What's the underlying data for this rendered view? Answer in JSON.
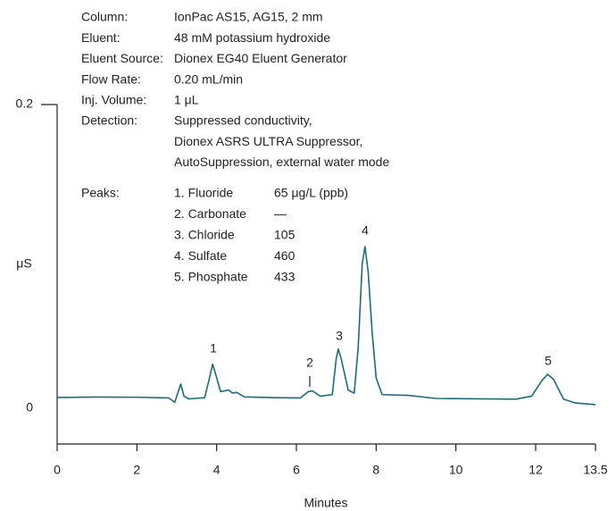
{
  "chart_data": {
    "type": "line",
    "x_label": "Minutes",
    "y_label": "μS",
    "xlim": [
      0,
      13.5
    ],
    "xticks": [
      0,
      2,
      4,
      6,
      8,
      10,
      12,
      13.5
    ],
    "ylim": [
      -0.0235,
      0.2
    ],
    "yticks": [
      0,
      0.2
    ],
    "y_tick_marks": [
      0.2
    ],
    "conditions": [
      {
        "label": "Column:",
        "value": [
          "IonPac AS15, AG15, 2 mm"
        ]
      },
      {
        "label": "Eluent:",
        "value": [
          "48 mM potassium hydroxide"
        ]
      },
      {
        "label": "Eluent Source:",
        "value": [
          "Dionex EG40 Eluent Generator"
        ]
      },
      {
        "label": "Flow Rate:",
        "value": [
          "0.20 mL/min"
        ]
      },
      {
        "label": "Inj. Volume:",
        "value": [
          "1 μL"
        ]
      },
      {
        "label": "Detection:",
        "value": [
          "Suppressed conductivity,",
          "Dionex ASRS ULTRA Suppressor,",
          "AutoSuppression, external water mode"
        ]
      }
    ],
    "peaks": {
      "label": "Peaks:",
      "items": [
        {
          "name": "1. Fluoride",
          "amount": "65 μg/L (ppb)"
        },
        {
          "name": "2. Carbonate",
          "amount": "—"
        },
        {
          "name": "3. Chloride",
          "amount": "105"
        },
        {
          "name": "4. Sulfate",
          "amount": "460"
        },
        {
          "name": "5. Phosphate",
          "amount": "433"
        }
      ]
    },
    "peak_labels": [
      "1",
      "2",
      "3",
      "4",
      "5"
    ],
    "series": [
      {
        "name": "Chromatogram",
        "color": "#1e6b78",
        "x": [
          0,
          1,
          2,
          2.8,
          2.95,
          3.05,
          3.1,
          3.18,
          3.3,
          3.7,
          3.82,
          3.9,
          3.98,
          4.1,
          4.3,
          4.4,
          4.5,
          4.7,
          5.5,
          6.1,
          6.3,
          6.4,
          6.6,
          6.9,
          7.0,
          7.05,
          7.12,
          7.3,
          7.45,
          7.55,
          7.65,
          7.72,
          7.8,
          7.9,
          8.0,
          8.15,
          8.8,
          9.5,
          11.5,
          11.9,
          12.15,
          12.3,
          12.45,
          12.7,
          13.0,
          13.5
        ],
        "values": [
          0.0071,
          0.0074,
          0.0073,
          0.0068,
          0.004,
          0.012,
          0.016,
          0.008,
          0.0062,
          0.007,
          0.02,
          0.029,
          0.022,
          0.011,
          0.012,
          0.01,
          0.0105,
          0.0075,
          0.007,
          0.0068,
          0.011,
          0.0115,
          0.008,
          0.009,
          0.033,
          0.039,
          0.033,
          0.012,
          0.01,
          0.04,
          0.095,
          0.1065,
          0.09,
          0.05,
          0.02,
          0.009,
          0.0085,
          0.0065,
          0.006,
          0.008,
          0.018,
          0.0224,
          0.019,
          0.006,
          0.0035,
          0.0024
        ]
      }
    ]
  }
}
